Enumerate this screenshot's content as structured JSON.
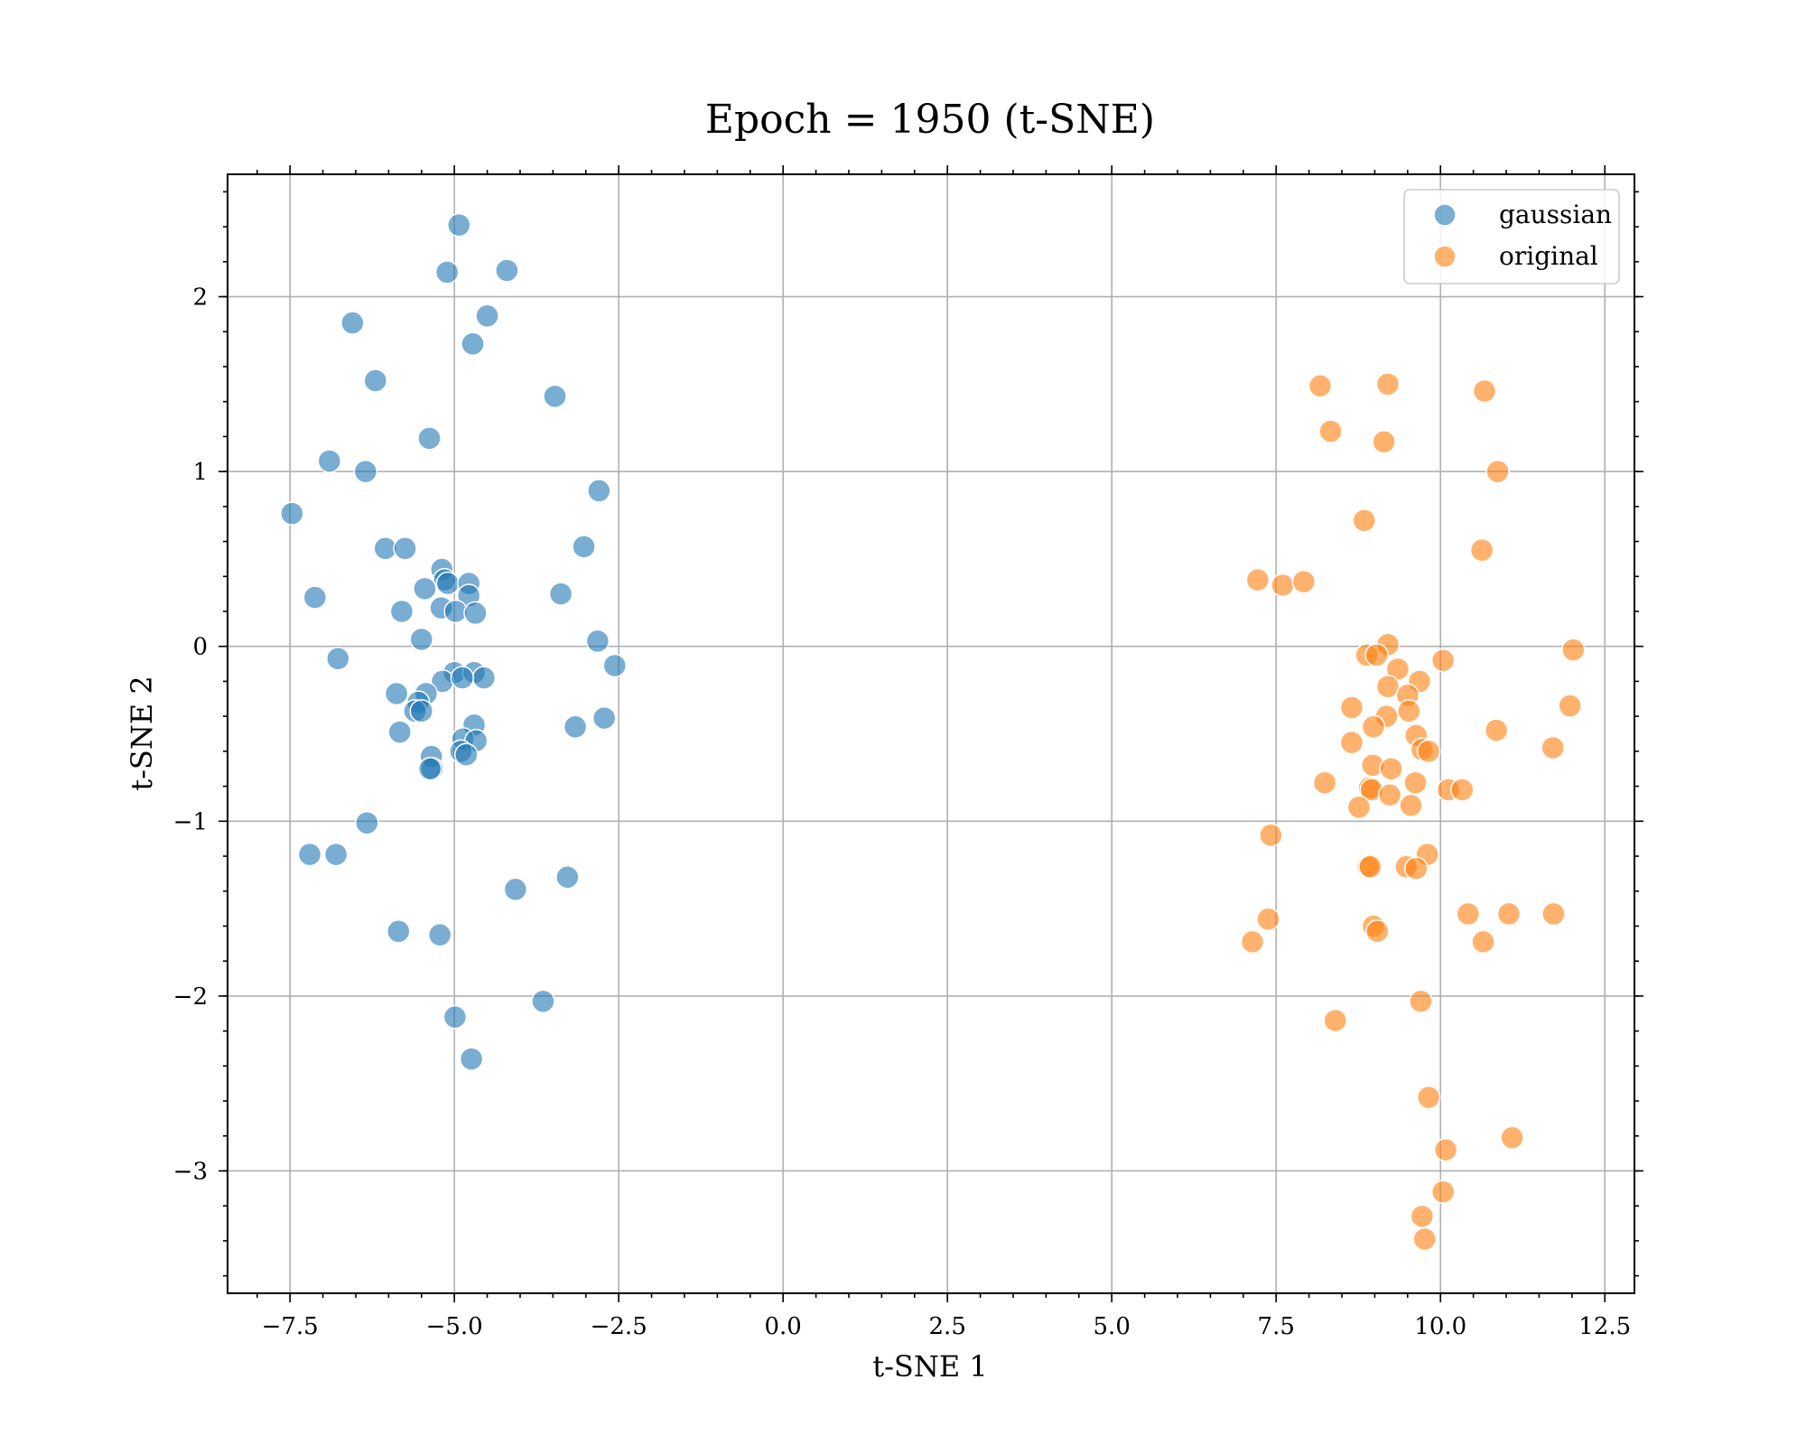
{
  "chart_data": {
    "type": "scatter",
    "title": "Epoch = 1950 (t-SNE)",
    "xlabel": "t-SNE 1",
    "ylabel": "t-SNE 2",
    "xlim": [
      -8.45,
      12.95
    ],
    "ylim": [
      -3.7,
      2.7
    ],
    "xticks": [
      -7.5,
      -5.0,
      -2.5,
      0.0,
      2.5,
      5.0,
      7.5,
      10.0,
      12.5
    ],
    "xtick_labels": [
      "−7.5",
      "−5.0",
      "−2.5",
      "0.0",
      "2.5",
      "5.0",
      "7.5",
      "10.0",
      "12.5"
    ],
    "yticks": [
      -3,
      -2,
      -1,
      0,
      1,
      2
    ],
    "ytick_labels": [
      "−3",
      "−2",
      "−1",
      "0",
      "1",
      "2"
    ],
    "grid": true,
    "legend_position": "top-right",
    "series": [
      {
        "name": "gaussian",
        "color": "#1f77b4",
        "points": [
          [
            -4.93,
            2.41
          ],
          [
            -5.11,
            2.14
          ],
          [
            -4.2,
            2.15
          ],
          [
            -4.5,
            1.89
          ],
          [
            -4.72,
            1.73
          ],
          [
            -6.55,
            1.85
          ],
          [
            -6.2,
            1.52
          ],
          [
            -3.47,
            1.43
          ],
          [
            -5.38,
            1.19
          ],
          [
            -6.9,
            1.06
          ],
          [
            -6.35,
            1.0
          ],
          [
            -7.47,
            0.76
          ],
          [
            -2.8,
            0.89
          ],
          [
            -3.03,
            0.57
          ],
          [
            -6.05,
            0.56
          ],
          [
            -5.75,
            0.56
          ],
          [
            -5.19,
            0.44
          ],
          [
            -5.15,
            0.38
          ],
          [
            -5.1,
            0.36
          ],
          [
            -4.78,
            0.36
          ],
          [
            -4.78,
            0.29
          ],
          [
            -5.45,
            0.33
          ],
          [
            -3.38,
            0.3
          ],
          [
            -7.12,
            0.28
          ],
          [
            -5.8,
            0.2
          ],
          [
            -5.2,
            0.22
          ],
          [
            -4.98,
            0.2
          ],
          [
            -4.68,
            0.19
          ],
          [
            -5.5,
            0.04
          ],
          [
            -2.82,
            0.03
          ],
          [
            -6.77,
            -0.07
          ],
          [
            -2.56,
            -0.11
          ],
          [
            -5.0,
            -0.15
          ],
          [
            -4.7,
            -0.15
          ],
          [
            -4.55,
            -0.18
          ],
          [
            -5.18,
            -0.2
          ],
          [
            -4.88,
            -0.18
          ],
          [
            -5.43,
            -0.27
          ],
          [
            -5.88,
            -0.27
          ],
          [
            -5.55,
            -0.32
          ],
          [
            -5.6,
            -0.37
          ],
          [
            -5.5,
            -0.37
          ],
          [
            -3.16,
            -0.46
          ],
          [
            -2.72,
            -0.41
          ],
          [
            -5.83,
            -0.49
          ],
          [
            -4.7,
            -0.45
          ],
          [
            -4.87,
            -0.53
          ],
          [
            -4.67,
            -0.54
          ],
          [
            -5.35,
            -0.63
          ],
          [
            -4.9,
            -0.6
          ],
          [
            -4.82,
            -0.62
          ],
          [
            -5.34,
            -0.7
          ],
          [
            -5.37,
            -0.7
          ],
          [
            -6.33,
            -1.01
          ],
          [
            -7.2,
            -1.19
          ],
          [
            -6.8,
            -1.19
          ],
          [
            -3.28,
            -1.32
          ],
          [
            -4.07,
            -1.39
          ],
          [
            -5.85,
            -1.63
          ],
          [
            -5.22,
            -1.65
          ],
          [
            -3.65,
            -2.03
          ],
          [
            -4.99,
            -2.12
          ],
          [
            -4.74,
            -2.36
          ]
        ]
      },
      {
        "name": "original",
        "color": "#ff7f0e",
        "points": [
          [
            8.17,
            1.49
          ],
          [
            9.2,
            1.5
          ],
          [
            10.67,
            1.46
          ],
          [
            8.33,
            1.23
          ],
          [
            9.14,
            1.17
          ],
          [
            10.87,
            1.0
          ],
          [
            8.84,
            0.72
          ],
          [
            10.63,
            0.55
          ],
          [
            7.22,
            0.38
          ],
          [
            7.6,
            0.35
          ],
          [
            7.92,
            0.37
          ],
          [
            9.2,
            0.01
          ],
          [
            8.88,
            -0.05
          ],
          [
            9.03,
            -0.05
          ],
          [
            10.04,
            -0.08
          ],
          [
            12.02,
            -0.02
          ],
          [
            9.35,
            -0.13
          ],
          [
            9.68,
            -0.2
          ],
          [
            9.2,
            -0.23
          ],
          [
            9.5,
            -0.28
          ],
          [
            11.97,
            -0.34
          ],
          [
            8.65,
            -0.35
          ],
          [
            9.52,
            -0.37
          ],
          [
            9.18,
            -0.4
          ],
          [
            8.98,
            -0.46
          ],
          [
            10.85,
            -0.48
          ],
          [
            9.63,
            -0.51
          ],
          [
            8.65,
            -0.55
          ],
          [
            9.72,
            -0.59
          ],
          [
            9.82,
            -0.6
          ],
          [
            11.71,
            -0.58
          ],
          [
            8.97,
            -0.68
          ],
          [
            9.25,
            -0.7
          ],
          [
            8.24,
            -0.78
          ],
          [
            9.62,
            -0.78
          ],
          [
            8.92,
            -0.81
          ],
          [
            8.95,
            -0.82
          ],
          [
            10.12,
            -0.82
          ],
          [
            10.33,
            -0.82
          ],
          [
            9.23,
            -0.85
          ],
          [
            9.55,
            -0.91
          ],
          [
            8.76,
            -0.92
          ],
          [
            7.42,
            -1.08
          ],
          [
            9.8,
            -1.19
          ],
          [
            8.9,
            -1.26
          ],
          [
            8.93,
            -1.26
          ],
          [
            9.48,
            -1.26
          ],
          [
            9.63,
            -1.27
          ],
          [
            10.42,
            -1.53
          ],
          [
            11.04,
            -1.53
          ],
          [
            11.72,
            -1.53
          ],
          [
            7.38,
            -1.56
          ],
          [
            8.98,
            -1.6
          ],
          [
            9.04,
            -1.63
          ],
          [
            7.14,
            -1.69
          ],
          [
            10.65,
            -1.69
          ],
          [
            9.7,
            -2.03
          ],
          [
            8.4,
            -2.14
          ],
          [
            9.82,
            -2.58
          ],
          [
            11.09,
            -2.81
          ],
          [
            10.08,
            -2.88
          ],
          [
            10.04,
            -3.12
          ],
          [
            9.72,
            -3.26
          ],
          [
            9.76,
            -3.39
          ]
        ]
      }
    ]
  }
}
